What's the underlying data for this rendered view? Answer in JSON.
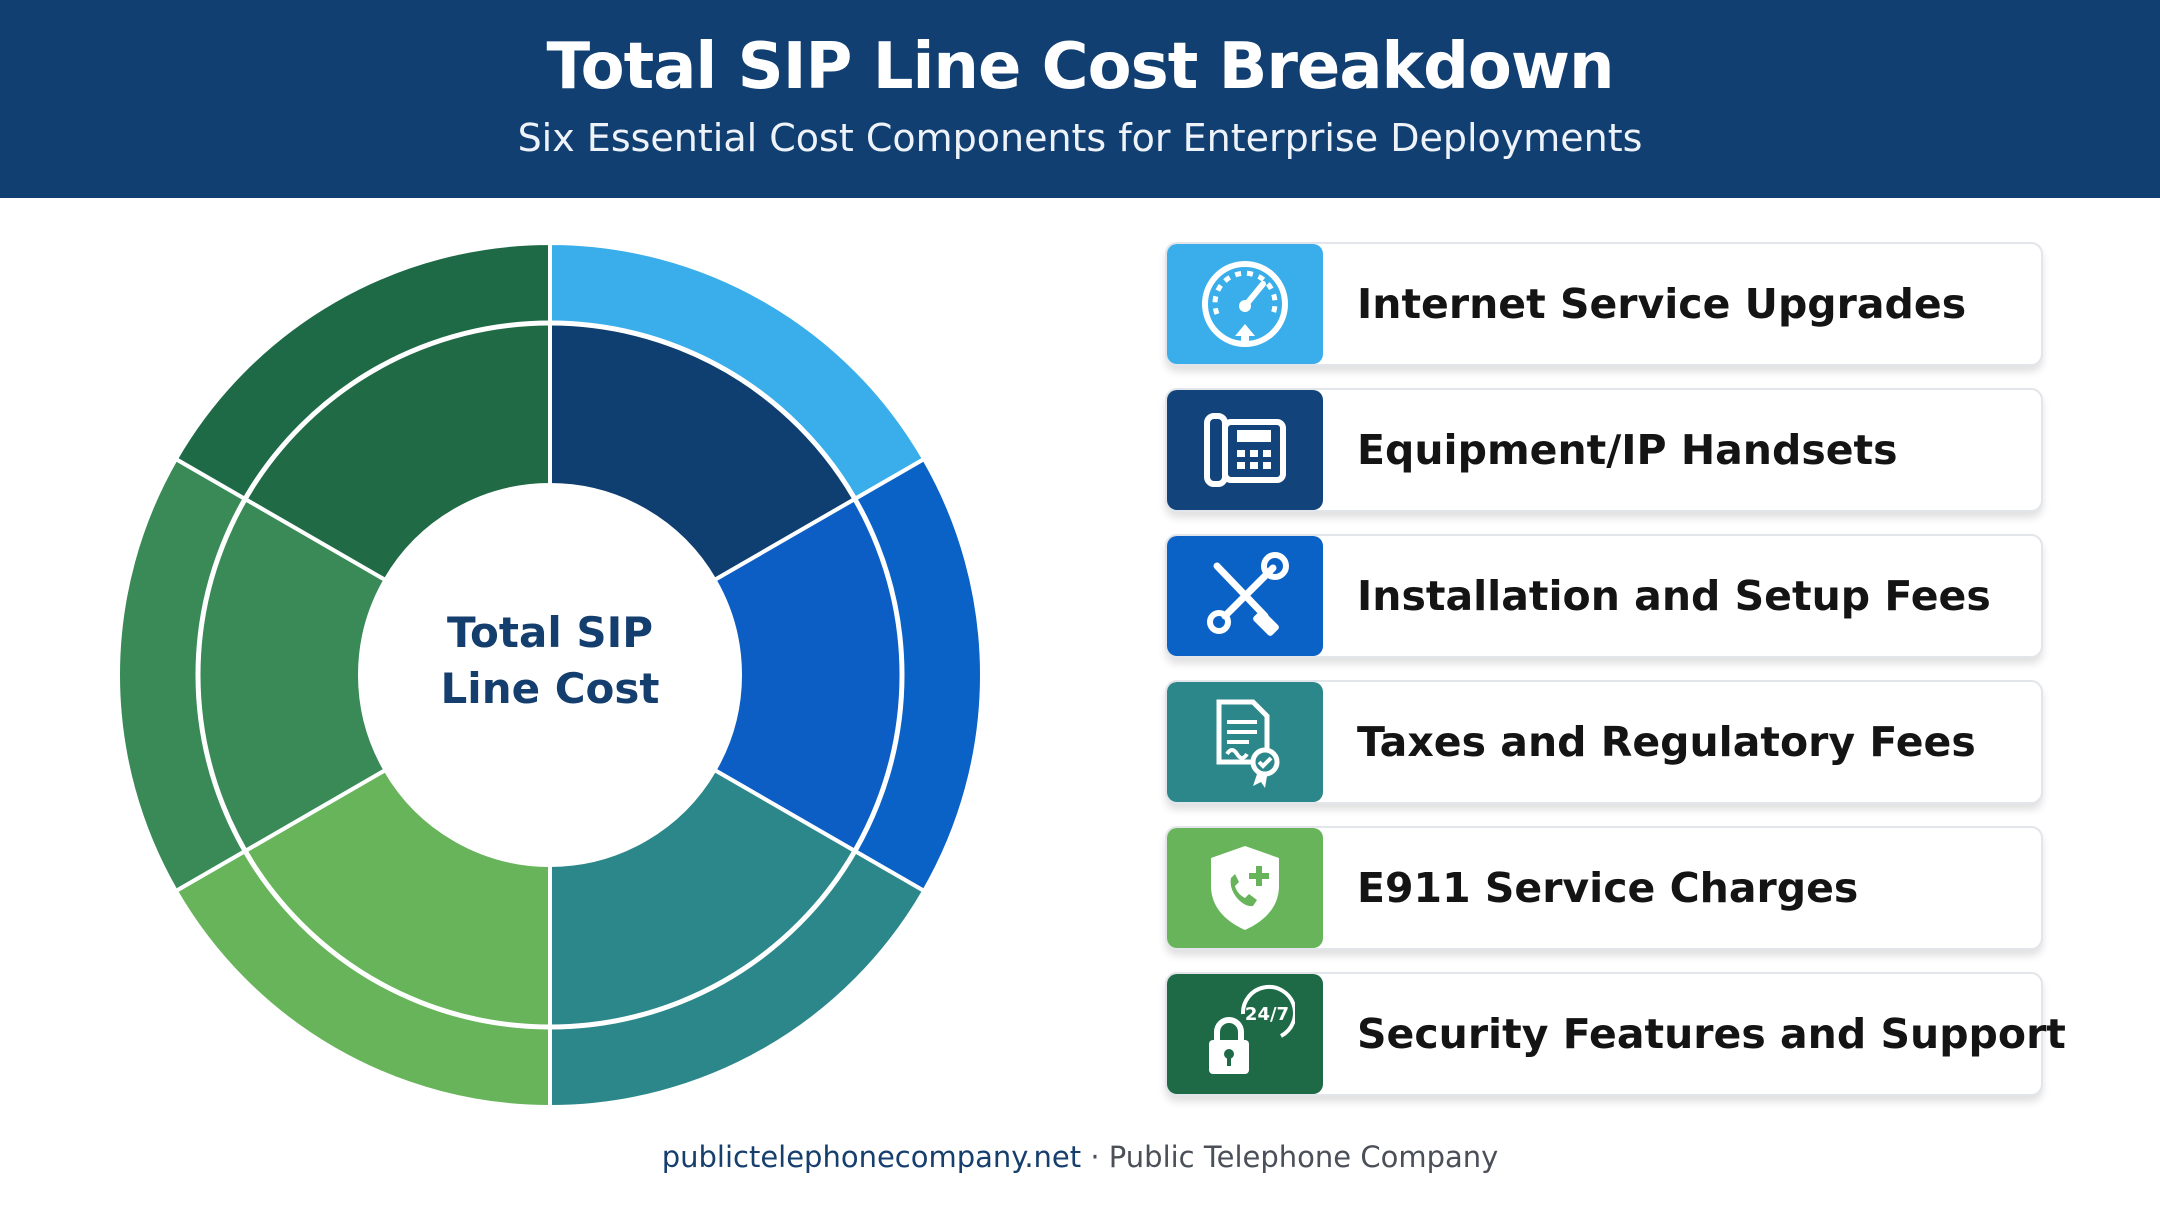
{
  "header": {
    "title": "Total SIP Line Cost Breakdown",
    "subtitle": "Six Essential Cost Components for Enterprise Deployments"
  },
  "chart_data": {
    "type": "pie",
    "title": "",
    "center_label": "Total SIP Line Cost",
    "categories": [
      "Internet Service Upgrades",
      "Equipment/IP Handsets",
      "Installation and Setup Fees",
      "Taxes and Regulatory Fees",
      "E911 Service Charges",
      "Security Features and Support"
    ],
    "values": [
      1,
      1,
      1,
      1,
      1,
      1
    ],
    "colors": [
      "#3aaeea",
      "#0a62c6",
      "#2b878a",
      "#67b45b",
      "#3a8a58",
      "#1e6a47"
    ],
    "inner_ring_colors": [
      "#0f3f70",
      "#0d5ec4",
      "#2b878a",
      "#67b45b",
      "#3a8a58",
      "#206a46"
    ],
    "legend": "right"
  },
  "cards": [
    {
      "label": "Internet Service Upgrades",
      "icon": "speedometer-icon",
      "color": "#3aaeea"
    },
    {
      "label": "Equipment/IP Handsets",
      "icon": "ip-phone-icon",
      "color": "#12437a"
    },
    {
      "label": "Installation and Setup Fees",
      "icon": "tools-icon",
      "color": "#0a62c6"
    },
    {
      "label": "Taxes and Regulatory Fees",
      "icon": "certificate-document-icon",
      "color": "#2b878a"
    },
    {
      "label": "E911 Service Charges",
      "icon": "shield-phone-icon",
      "color": "#67b45b"
    },
    {
      "label": "Security Features and Support",
      "icon": "lock-support-icon",
      "color": "#1e6a47",
      "badge": "24/7"
    }
  ],
  "footer": {
    "site": "publictelephonecompany.net",
    "separator": " · ",
    "company": "Public Telephone Company"
  }
}
